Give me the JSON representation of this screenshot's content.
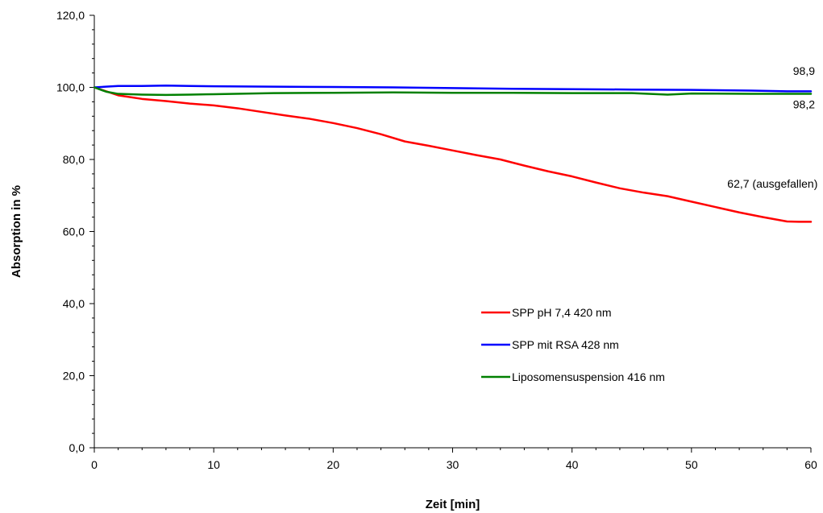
{
  "chart_data": {
    "type": "line",
    "title": "",
    "xlabel": "Zeit [min]",
    "ylabel": "Absorption in %",
    "xlim": [
      0,
      60
    ],
    "ylim": [
      0,
      120
    ],
    "x_ticks": [
      "0",
      "10",
      "20",
      "30",
      "40",
      "50",
      "60"
    ],
    "y_ticks": [
      "0,0",
      "20,0",
      "40,0",
      "60,0",
      "80,0",
      "100,0",
      "120,0"
    ],
    "grid": false,
    "legend_position": "center-right",
    "series": [
      {
        "name": "SPP pH 7,4   420 nm",
        "color": "#ff0000",
        "x": [
          0,
          2,
          4,
          6,
          8,
          10,
          12,
          14,
          16,
          18,
          20,
          22,
          24,
          26,
          28,
          30,
          32,
          34,
          36,
          38,
          40,
          42,
          44,
          46,
          48,
          50,
          52,
          54,
          56,
          58,
          59,
          60
        ],
        "y": [
          100,
          97.8,
          96.8,
          96.2,
          95.5,
          95.0,
          94.2,
          93.2,
          92.2,
          91.3,
          90.1,
          88.7,
          87.0,
          85.0,
          83.8,
          82.5,
          81.2,
          80.0,
          78.3,
          76.7,
          75.3,
          73.6,
          72.0,
          70.8,
          69.8,
          68.3,
          66.8,
          65.3,
          64.0,
          62.8,
          62.7,
          62.7
        ]
      },
      {
        "name": "SPP mit RSA   428 nm",
        "color": "#0000ff",
        "x": [
          0,
          2,
          4,
          6,
          8,
          10,
          15,
          20,
          25,
          30,
          35,
          40,
          45,
          50,
          55,
          58,
          60
        ],
        "y": [
          100,
          100.4,
          100.4,
          100.5,
          100.4,
          100.3,
          100.2,
          100.1,
          100.0,
          99.8,
          99.6,
          99.5,
          99.4,
          99.3,
          99.1,
          98.9,
          98.9
        ]
      },
      {
        "name": "Liposomensuspension  416 nm",
        "color": "#008000",
        "x": [
          0,
          1,
          2,
          4,
          6,
          8,
          10,
          15,
          20,
          25,
          30,
          35,
          40,
          45,
          48,
          50,
          55,
          60
        ],
        "y": [
          100,
          98.8,
          98.2,
          98.0,
          97.9,
          98.0,
          98.1,
          98.4,
          98.5,
          98.6,
          98.5,
          98.5,
          98.4,
          98.4,
          98.0,
          98.3,
          98.2,
          98.2
        ]
      }
    ],
    "annotations": [
      {
        "text": "98,9",
        "x": 58.5,
        "y": 103.5
      },
      {
        "text": "98,2",
        "x": 58.5,
        "y": 94.2
      },
      {
        "text": "62,7 (ausgefallen)",
        "x": 53.0,
        "y": 72.2
      }
    ]
  }
}
